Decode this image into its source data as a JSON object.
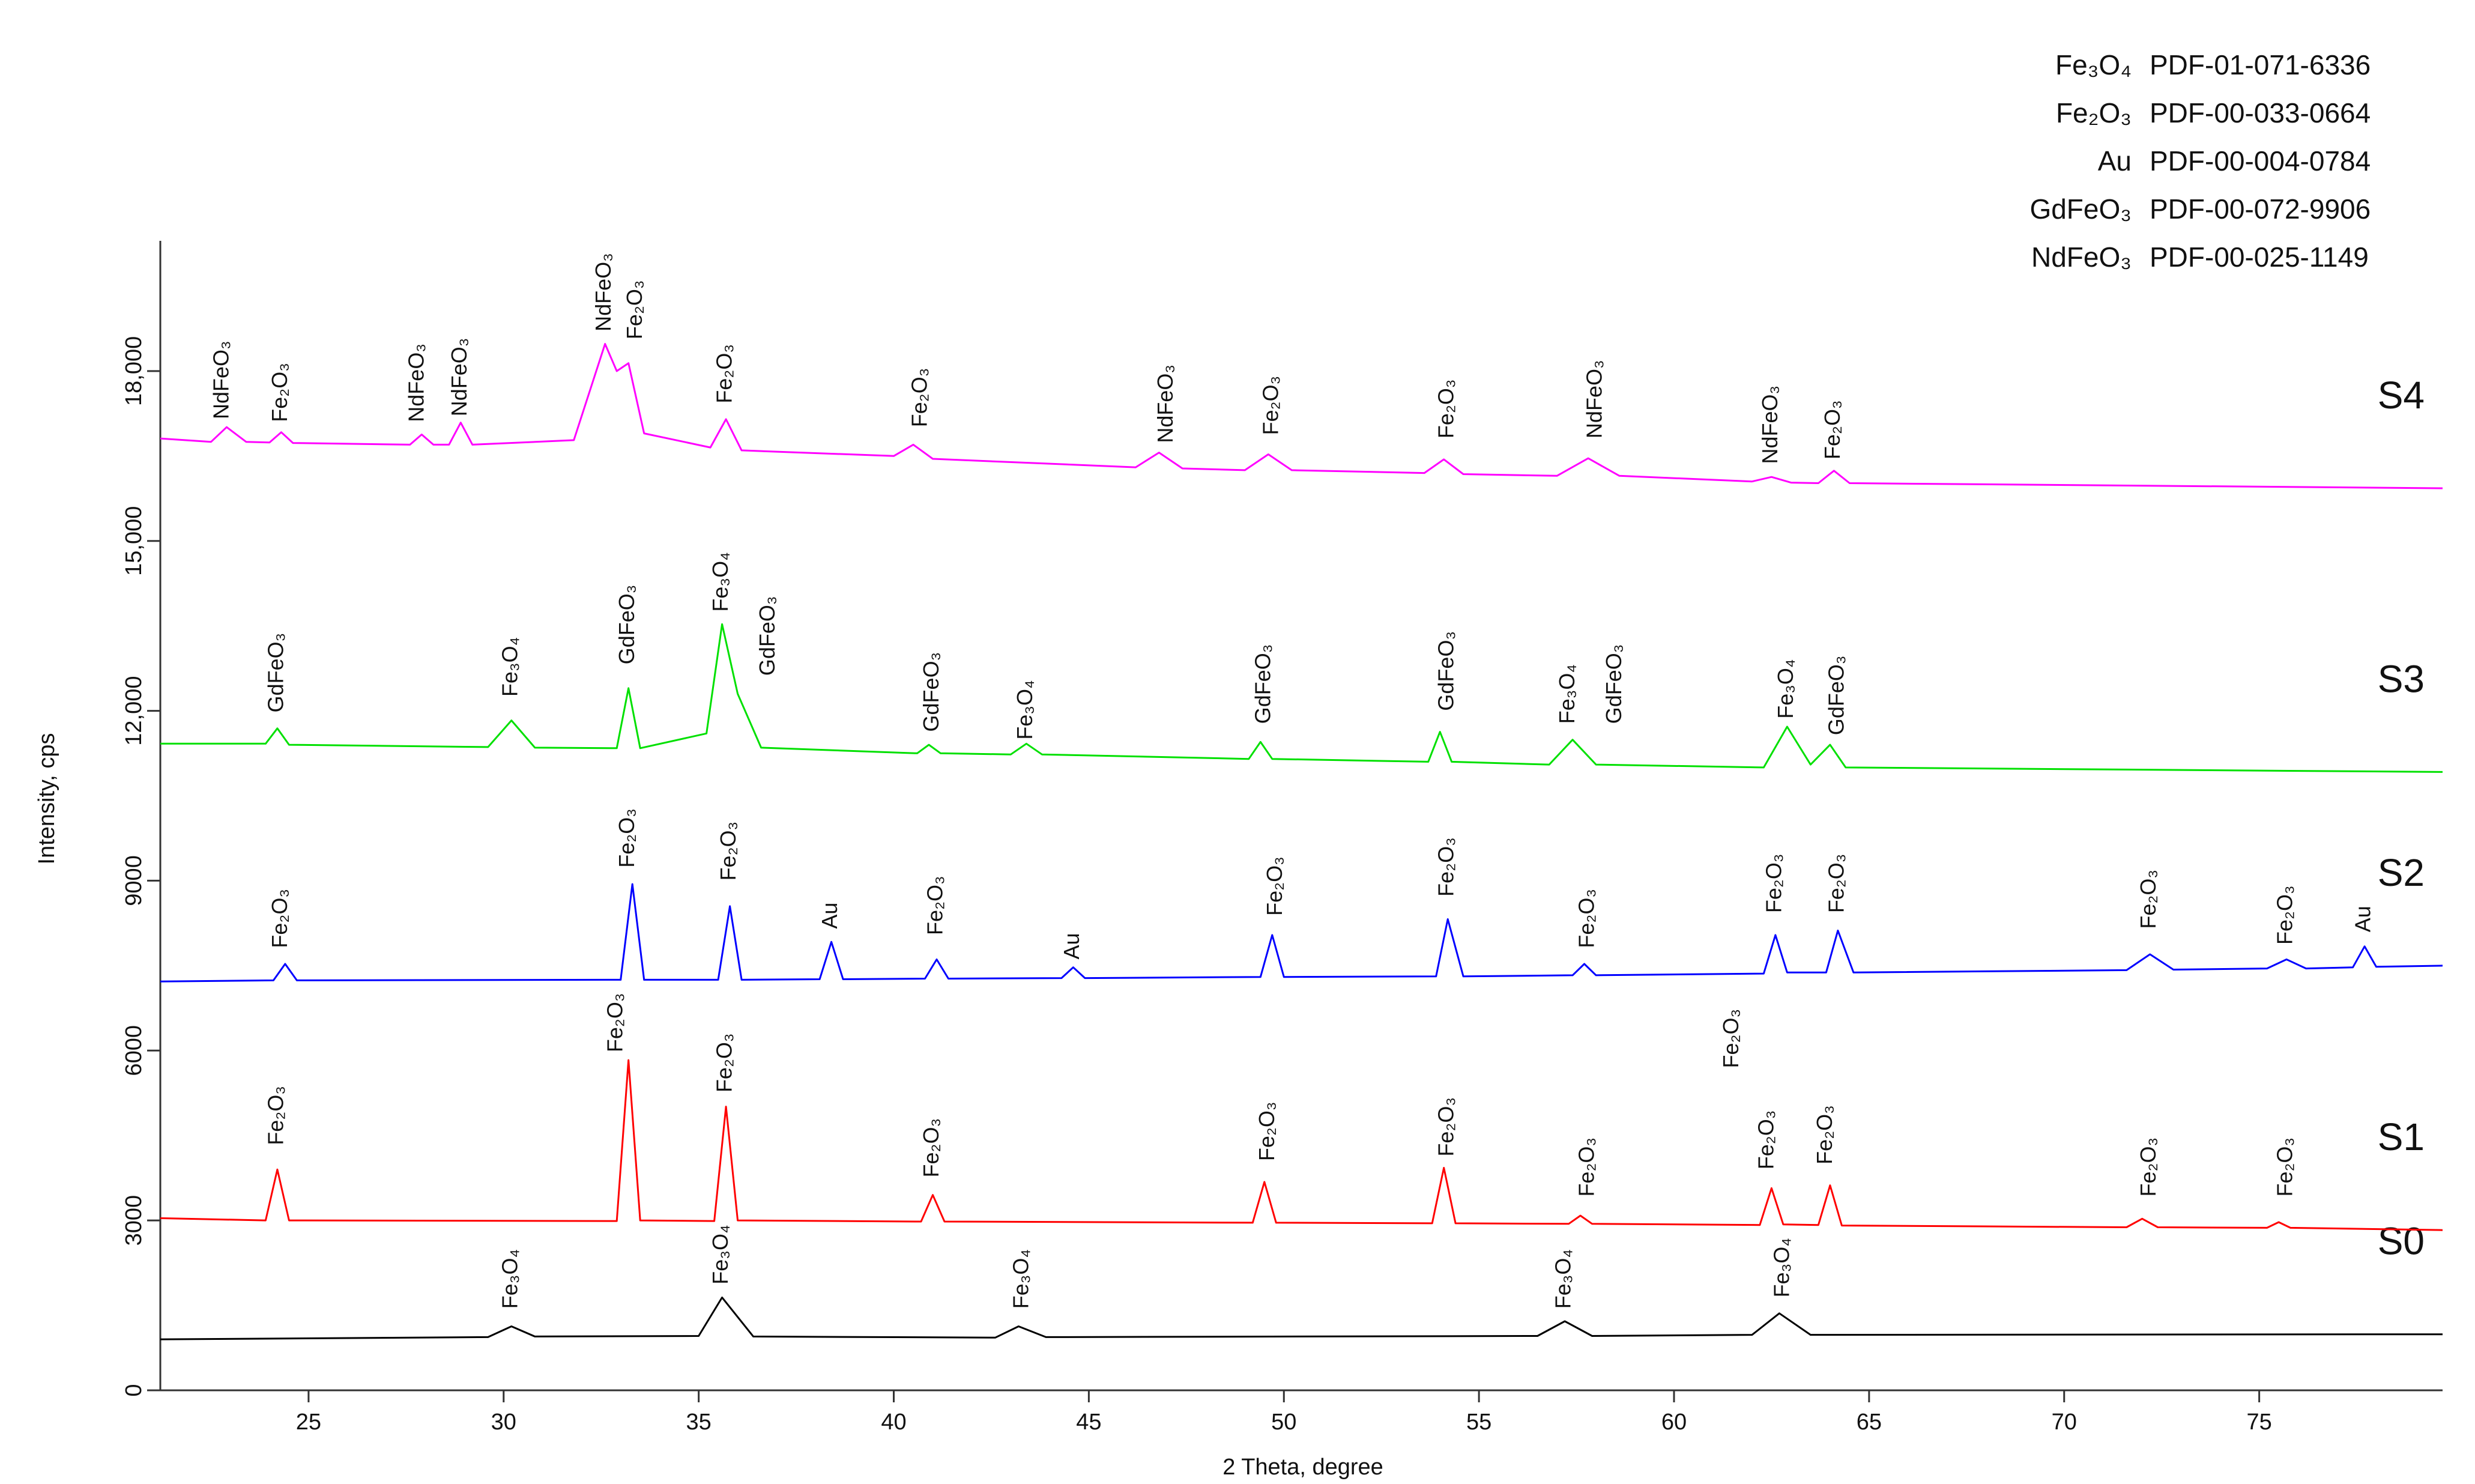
{
  "chart_data": {
    "type": "line",
    "xlabel": "2 Theta, degree",
    "ylabel": "Intensity, cps",
    "xlim": [
      21.2,
      79.7
    ],
    "xticks": [
      25,
      30,
      35,
      40,
      45,
      50,
      55,
      60,
      65,
      70,
      75
    ],
    "ylim": [
      0,
      20300
    ],
    "yticks": [
      0,
      3000,
      6000,
      9000,
      {
        "value": 12000,
        "label": "12,000"
      },
      {
        "value": 15000,
        "label": "15,000"
      },
      {
        "value": 18000,
        "label": "18,000"
      }
    ],
    "series": [
      {
        "name": "S0",
        "color": "#000000",
        "x": [
          21.2,
          29.6,
          30.2,
          30.8,
          35.0,
          35.6,
          36.4,
          42.6,
          43.2,
          43.9,
          56.5,
          57.2,
          57.9,
          62.0,
          62.7,
          63.5,
          79.7
        ],
        "values": [
          900,
          940,
          1130,
          950,
          960,
          1640,
          950,
          930,
          1130,
          940,
          960,
          1220,
          960,
          980,
          1360,
          980,
          990
        ]
      },
      {
        "name": "S1",
        "color": "#ff0000",
        "x": [
          21.2,
          23.9,
          24.2,
          24.5,
          32.9,
          33.2,
          33.5,
          35.4,
          35.7,
          36.0,
          40.7,
          41.0,
          41.3,
          49.2,
          49.5,
          49.8,
          53.8,
          54.1,
          54.4,
          57.3,
          57.6,
          57.9,
          62.2,
          62.5,
          62.8,
          63.7,
          64.0,
          64.3,
          71.6,
          72.0,
          72.4,
          75.2,
          75.5,
          75.8,
          79.7
        ],
        "values": [
          3040,
          3000,
          3900,
          3000,
          2990,
          5830,
          3000,
          2990,
          5010,
          3000,
          2980,
          3450,
          2980,
          2960,
          3680,
          2960,
          2950,
          3930,
          2950,
          2940,
          3085,
          2940,
          2920,
          3570,
          2930,
          2920,
          3620,
          2910,
          2880,
          3030,
          2880,
          2870,
          2970,
          2870,
          2830
        ]
      },
      {
        "name": "S2",
        "color": "#0000ff",
        "x": [
          21.2,
          24.1,
          24.4,
          24.7,
          33.0,
          33.3,
          33.6,
          35.5,
          35.8,
          36.1,
          38.1,
          38.4,
          38.7,
          40.8,
          41.1,
          41.4,
          44.3,
          44.6,
          44.9,
          49.4,
          49.7,
          50.0,
          53.9,
          54.2,
          54.6,
          57.4,
          57.7,
          58.0,
          62.3,
          62.6,
          62.9,
          63.9,
          64.2,
          64.6,
          71.6,
          72.2,
          72.8,
          75.2,
          75.7,
          76.2,
          77.4,
          77.7,
          78.0,
          79.7
        ],
        "values": [
          7220,
          7240,
          7530,
          7240,
          7250,
          8940,
          7250,
          7250,
          8550,
          7250,
          7260,
          7920,
          7260,
          7270,
          7610,
          7270,
          7280,
          7470,
          7280,
          7300,
          8040,
          7300,
          7310,
          8320,
          7310,
          7330,
          7530,
          7330,
          7360,
          8040,
          7380,
          7380,
          8120,
          7380,
          7420,
          7700,
          7430,
          7450,
          7610,
          7450,
          7470,
          7840,
          7480,
          7500
        ]
      },
      {
        "name": "S3",
        "color": "#00e000",
        "x": [
          21.2,
          23.9,
          24.2,
          24.5,
          29.6,
          30.2,
          30.8,
          32.9,
          33.2,
          33.5,
          35.2,
          35.6,
          36.0,
          36.6,
          40.6,
          40.9,
          41.2,
          43.0,
          43.4,
          43.8,
          49.1,
          49.4,
          49.7,
          53.7,
          54.0,
          54.3,
          56.8,
          57.4,
          58.0,
          62.3,
          62.9,
          63.5,
          64.0,
          64.4,
          79.7
        ],
        "values": [
          11420,
          11420,
          11690,
          11400,
          11360,
          11830,
          11350,
          11340,
          12400,
          11340,
          11600,
          13530,
          12300,
          11350,
          11250,
          11400,
          11250,
          11230,
          11420,
          11230,
          11150,
          11450,
          11150,
          11100,
          11630,
          11100,
          11050,
          11490,
          11050,
          11000,
          11720,
          11050,
          11400,
          11000,
          10920
        ]
      },
      {
        "name": "S4",
        "color": "#ff00ff",
        "x": [
          21.2,
          22.5,
          22.9,
          23.4,
          24.0,
          24.3,
          24.6,
          27.6,
          27.9,
          28.2,
          28.6,
          28.9,
          29.2,
          31.8,
          32.6,
          32.9,
          33.2,
          33.6,
          35.3,
          35.7,
          36.1,
          40.0,
          40.5,
          41.0,
          46.2,
          46.8,
          47.4,
          49.0,
          49.6,
          50.2,
          53.6,
          54.1,
          54.6,
          57.0,
          57.8,
          58.6,
          62.0,
          62.5,
          63.0,
          63.7,
          64.1,
          64.5,
          79.7
        ],
        "values": [
          16810,
          16750,
          17010,
          16750,
          16740,
          16920,
          16730,
          16700,
          16880,
          16700,
          16700,
          17090,
          16700,
          16780,
          18480,
          18000,
          18140,
          16900,
          16650,
          17150,
          16600,
          16500,
          16700,
          16450,
          16300,
          16560,
          16280,
          16250,
          16530,
          16250,
          16200,
          16440,
          16180,
          16150,
          16460,
          16150,
          16050,
          16130,
          16030,
          16020,
          16240,
          16020,
          15930
        ]
      }
    ],
    "legend": [
      {
        "phase": "Fe₃O₄",
        "pdf": "PDF-01-071-6336"
      },
      {
        "phase": "Fe₂O₃",
        "pdf": "PDF-00-033-0664"
      },
      {
        "phase": "Au",
        "pdf": "PDF-00-004-0784"
      },
      {
        "phase": "GdFeO₃",
        "pdf": "PDF-00-072-9906"
      },
      {
        "phase": "NdFeO₃",
        "pdf": "PDF-00-025-1149"
      }
    ],
    "annotations": [
      {
        "text": "NdFeO₃",
        "x": 22.8,
        "y": 17150
      },
      {
        "text": "Fe₂O₃",
        "x": 24.3,
        "y": 17100
      },
      {
        "text": "NdFeO₃",
        "x": 27.8,
        "y": 17100
      },
      {
        "text": "NdFeO₃",
        "x": 28.9,
        "y": 17200
      },
      {
        "text": "NdFeO₃",
        "x": 32.6,
        "y": 18700
      },
      {
        "text": "Fe₂O₃",
        "x": 33.4,
        "y": 18560
      },
      {
        "text": "Fe₂O₃",
        "x": 35.7,
        "y": 17430
      },
      {
        "text": "Fe₂O₃",
        "x": 40.7,
        "y": 17010
      },
      {
        "text": "NdFeO₃",
        "x": 47.0,
        "y": 16730
      },
      {
        "text": "Fe₂O₃",
        "x": 49.7,
        "y": 16870
      },
      {
        "text": "Fe₂O₃",
        "x": 54.2,
        "y": 16810
      },
      {
        "text": "NdFeO₃",
        "x": 58.0,
        "y": 16810
      },
      {
        "text": "NdFeO₃",
        "x": 62.5,
        "y": 16360
      },
      {
        "text": "Fe₂O₃",
        "x": 64.1,
        "y": 16440
      },
      {
        "text": "GdFeO₃",
        "x": 24.2,
        "y": 11970
      },
      {
        "text": "Fe₃O₄",
        "x": 30.2,
        "y": 12250
      },
      {
        "text": "GdFeO₃",
        "x": 33.2,
        "y": 12820
      },
      {
        "text": "Fe₃O₄",
        "x": 35.6,
        "y": 13750
      },
      {
        "text": "GdFeO₃",
        "x": 36.8,
        "y": 12620
      },
      {
        "text": "GdFeO₃",
        "x": 41.0,
        "y": 11630
      },
      {
        "text": "Fe₃O₄",
        "x": 43.4,
        "y": 11490
      },
      {
        "text": "GdFeO₃",
        "x": 49.5,
        "y": 11770
      },
      {
        "text": "GdFeO₃",
        "x": 54.2,
        "y": 12000
      },
      {
        "text": "Fe₃O₄",
        "x": 57.3,
        "y": 11770
      },
      {
        "text": "GdFeO₃",
        "x": 58.5,
        "y": 11770
      },
      {
        "text": "Fe₃O₄",
        "x": 62.9,
        "y": 11860
      },
      {
        "text": "GdFeO₃",
        "x": 64.2,
        "y": 11570
      },
      {
        "text": "Fe₂O₃",
        "x": 24.3,
        "y": 7810
      },
      {
        "text": "Fe₂O₃",
        "x": 33.2,
        "y": 9230
      },
      {
        "text": "Fe₂O₃",
        "x": 35.8,
        "y": 9000
      },
      {
        "text": "Au",
        "x": 38.4,
        "y": 8150
      },
      {
        "text": "Fe₂O₃",
        "x": 41.1,
        "y": 8040
      },
      {
        "text": "Au",
        "x": 44.6,
        "y": 7610
      },
      {
        "text": "Fe₂O₃",
        "x": 49.8,
        "y": 8380
      },
      {
        "text": "Fe₂O₃",
        "x": 54.2,
        "y": 8720
      },
      {
        "text": "Fe₂O₃",
        "x": 57.8,
        "y": 7810
      },
      {
        "text": "Fe₂O₃",
        "x": 62.6,
        "y": 8430
      },
      {
        "text": "Fe₂O₃",
        "x": 64.2,
        "y": 8430
      },
      {
        "text": "Fe₂O₃",
        "x": 72.2,
        "y": 8150
      },
      {
        "text": "Fe₂O₃",
        "x": 75.7,
        "y": 7870
      },
      {
        "text": "Au",
        "x": 77.7,
        "y": 8090
      },
      {
        "text": "Fe₂O₃",
        "x": 24.2,
        "y": 4330
      },
      {
        "text": "Fe₂O₃",
        "x": 32.9,
        "y": 5970
      },
      {
        "text": "Fe₂O₃",
        "x": 35.7,
        "y": 5260
      },
      {
        "text": "Fe₂O₃",
        "x": 41.0,
        "y": 3760
      },
      {
        "text": "Fe₂O₃",
        "x": 49.6,
        "y": 4050
      },
      {
        "text": "Fe₂O₃",
        "x": 54.2,
        "y": 4130
      },
      {
        "text": "Fe₂O₃",
        "x": 57.8,
        "y": 3420
      },
      {
        "text": "Fe₂O₃",
        "x": 61.5,
        "y": 5690
      },
      {
        "text": "Fe₂O₃",
        "x": 62.4,
        "y": 3900
      },
      {
        "text": "Fe₂O₃",
        "x": 63.9,
        "y": 3990
      },
      {
        "text": "Fe₂O₃",
        "x": 72.2,
        "y": 3420
      },
      {
        "text": "Fe₂O₃",
        "x": 75.7,
        "y": 3420
      },
      {
        "text": "Fe₃O₄",
        "x": 30.2,
        "y": 1440
      },
      {
        "text": "Fe₃O₄",
        "x": 35.6,
        "y": 1870
      },
      {
        "text": "Fe₃O₄",
        "x": 43.3,
        "y": 1440
      },
      {
        "text": "Fe₃O₄",
        "x": 57.2,
        "y": 1440
      },
      {
        "text": "Fe₃O₄",
        "x": 62.8,
        "y": 1640
      }
    ]
  }
}
